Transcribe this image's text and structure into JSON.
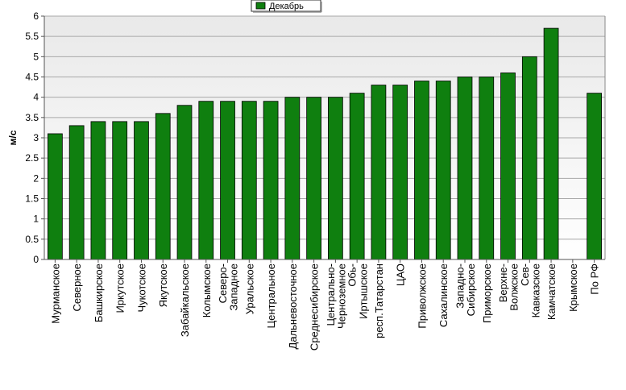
{
  "chart_data": {
    "type": "bar",
    "title": "",
    "xlabel": "",
    "ylabel": "м/с",
    "ylim": [
      0,
      6
    ],
    "ytick_step": 0.5,
    "grid": true,
    "legend_position": "top-center",
    "categories": [
      "Мурманское",
      "Северное",
      "Башкирское",
      "Иркутское",
      "Чукотское",
      "Якутское",
      "Забайкальское",
      "Колымское",
      "Северо-Западное",
      "Уральское",
      "Центральное",
      "Дальневосточное",
      "Среднесибирское",
      "Центрально-Черноземное",
      "Обь-Иртышское",
      "респ.Татарстан",
      "ЦАО",
      "Приволжское",
      "Сахалинское",
      "Западно-Сибирское",
      "Приморское",
      "Верхне-Волжское",
      "Сев-Кавказское",
      "Камчатское",
      "Крымское",
      "По РФ"
    ],
    "series": [
      {
        "name": "Декабрь",
        "color": "#0f7f0f",
        "values": [
          3.1,
          3.3,
          3.4,
          3.4,
          3.4,
          3.6,
          3.8,
          3.9,
          3.9,
          3.9,
          3.9,
          4.0,
          4.0,
          4.0,
          4.1,
          4.3,
          4.3,
          4.4,
          4.4,
          4.5,
          4.5,
          4.6,
          5.0,
          5.7,
          null,
          4.1
        ]
      }
    ]
  }
}
